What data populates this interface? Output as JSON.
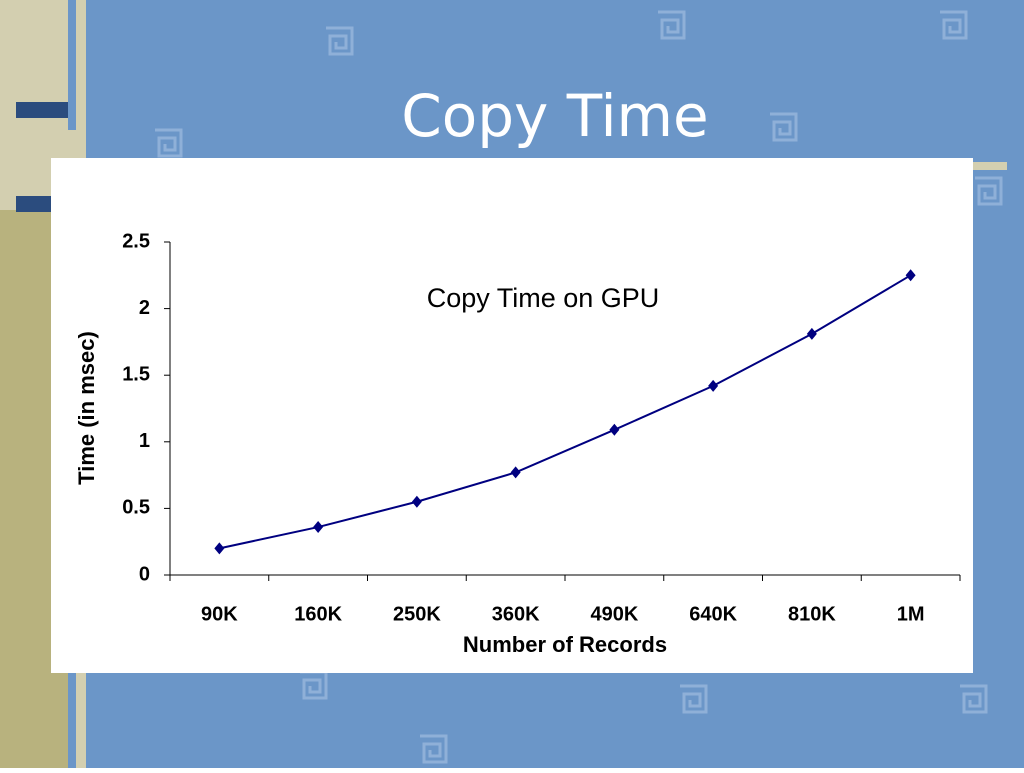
{
  "title": "Copy Time",
  "chart_data": {
    "type": "line",
    "title": "Copy Time on GPU",
    "x_label": "Number of Records",
    "y_label": "Time (in msec)",
    "categories": [
      "90K",
      "160K",
      "250K",
      "360K",
      "490K",
      "640K",
      "810K",
      "1M"
    ],
    "values": [
      0.2,
      0.36,
      0.55,
      0.77,
      1.09,
      1.42,
      1.81,
      2.25
    ],
    "color": "#000080",
    "ylim": [
      0,
      2.5
    ],
    "yticks": [
      0,
      0.5,
      1,
      1.5,
      2,
      2.5
    ],
    "grid": false
  }
}
